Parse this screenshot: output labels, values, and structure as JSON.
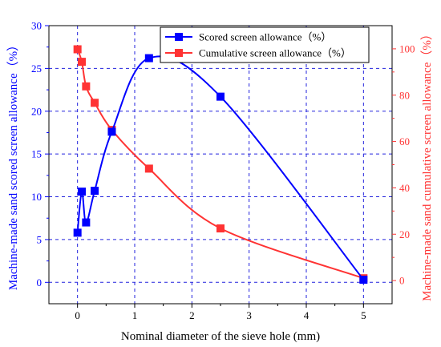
{
  "colors": {
    "scored": "#0000ff",
    "cumulative": "#ff3333",
    "grid": "#2222dd",
    "axis": "#000000"
  },
  "chart_data": {
    "type": "line",
    "title": "",
    "xlabel": "Nominal diameter of the sieve hole (mm)",
    "ylabel_left": "Machine-made sand scored screen allowance（%）",
    "ylabel_right": "Machine-made sand cumulative screen allowance（%）",
    "xlim": [
      -0.5,
      5.5
    ],
    "ylim_left": [
      -2.5,
      30
    ],
    "ylim_right": [
      -10,
      110
    ],
    "x_ticks": [
      "0",
      "1",
      "2",
      "3",
      "4",
      "5"
    ],
    "y_left_ticks": [
      "0",
      "5",
      "10",
      "15",
      "20",
      "25",
      "30"
    ],
    "y_right_ticks": [
      "0",
      "20",
      "40",
      "60",
      "80",
      "100"
    ],
    "grid": true,
    "legend_position": "top-right",
    "series": [
      {
        "name": "Scored screen allowance（%）",
        "axis": "left",
        "marker": "square",
        "x": [
          0,
          0.075,
          0.15,
          0.3,
          0.6,
          1.25,
          2.5,
          5
        ],
        "y": [
          5.8,
          10.6,
          7.0,
          10.7,
          17.6,
          26.2,
          21.7,
          0.3
        ]
      },
      {
        "name": "Cumulative screen allowance（%）",
        "axis": "right",
        "marker": "square",
        "x": [
          0,
          0.075,
          0.15,
          0.3,
          0.6,
          1.25,
          2.5,
          5
        ],
        "y": [
          99.8,
          94.4,
          83.8,
          76.7,
          65.0,
          48.3,
          22.5,
          1.0
        ]
      }
    ]
  }
}
